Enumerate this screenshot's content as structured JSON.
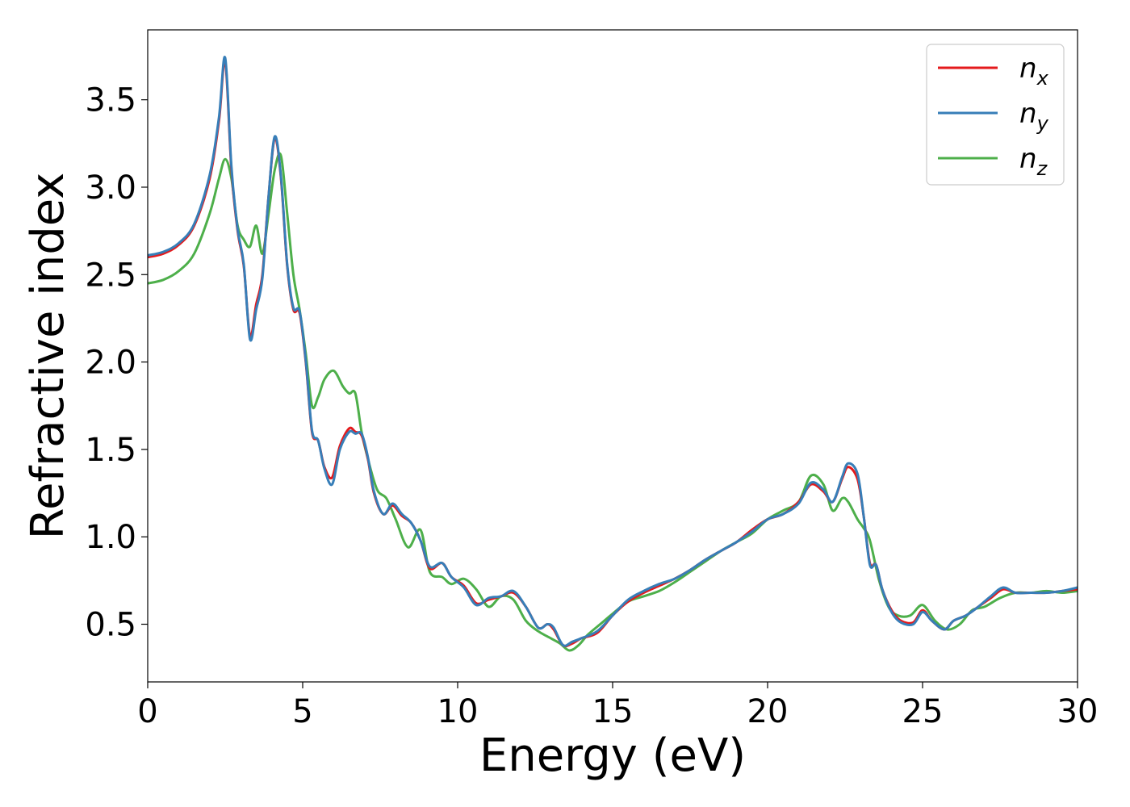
{
  "chart_data": {
    "type": "line",
    "title": "",
    "xlabel": "Energy (eV)",
    "ylabel": "Refractive index",
    "xlim": [
      0,
      30
    ],
    "ylim": [
      0.17,
      3.9
    ],
    "xticks": [
      0,
      5,
      10,
      15,
      20,
      25,
      30
    ],
    "xtick_labels": [
      "0",
      "5",
      "10",
      "15",
      "20",
      "25",
      "30"
    ],
    "yticks": [
      0.5,
      1.0,
      1.5,
      2.0,
      2.5,
      3.0,
      3.5
    ],
    "ytick_labels": [
      "0.5",
      "1.0",
      "1.5",
      "2.0",
      "2.5",
      "3.0",
      "3.5"
    ],
    "grid": false,
    "legend_position": "top-right",
    "series": [
      {
        "name": "n_x",
        "label_base": "n",
        "label_sub": "x",
        "color": "#e41a1c",
        "x": [
          0,
          0.5,
          1.0,
          1.5,
          2.0,
          2.3,
          2.5,
          2.7,
          2.9,
          3.1,
          3.3,
          3.5,
          3.7,
          3.9,
          4.1,
          4.3,
          4.5,
          4.7,
          4.9,
          5.1,
          5.3,
          5.5,
          5.7,
          5.95,
          6.2,
          6.5,
          6.7,
          6.9,
          7.1,
          7.3,
          7.6,
          7.9,
          8.2,
          8.5,
          8.8,
          9.1,
          9.5,
          9.8,
          10.2,
          10.6,
          11.0,
          11.4,
          11.8,
          12.2,
          12.6,
          12.9,
          13.1,
          13.4,
          13.7,
          14.0,
          14.5,
          15.0,
          15.5,
          16.0,
          16.5,
          17.0,
          17.5,
          18.0,
          18.5,
          19.0,
          19.5,
          20.0,
          20.5,
          21.0,
          21.4,
          21.8,
          22.1,
          22.4,
          22.6,
          22.9,
          23.1,
          23.3,
          23.5,
          23.7,
          24.0,
          24.3,
          24.7,
          25.0,
          25.3,
          25.7,
          26.0,
          26.4,
          26.8,
          27.2,
          27.6,
          28.0,
          28.5,
          29.0,
          29.5,
          30.0
        ],
        "values": [
          2.6,
          2.62,
          2.67,
          2.78,
          3.05,
          3.38,
          3.72,
          3.1,
          2.75,
          2.55,
          2.15,
          2.33,
          2.5,
          2.95,
          3.28,
          3.05,
          2.55,
          2.3,
          2.28,
          2.0,
          1.6,
          1.55,
          1.4,
          1.34,
          1.52,
          1.62,
          1.6,
          1.58,
          1.45,
          1.25,
          1.13,
          1.18,
          1.12,
          1.08,
          0.98,
          0.82,
          0.85,
          0.77,
          0.72,
          0.62,
          0.64,
          0.66,
          0.68,
          0.6,
          0.48,
          0.5,
          0.47,
          0.38,
          0.39,
          0.42,
          0.45,
          0.55,
          0.63,
          0.68,
          0.72,
          0.76,
          0.81,
          0.87,
          0.92,
          0.97,
          1.04,
          1.1,
          1.13,
          1.2,
          1.3,
          1.26,
          1.2,
          1.33,
          1.4,
          1.33,
          1.12,
          0.85,
          0.84,
          0.7,
          0.58,
          0.52,
          0.51,
          0.58,
          0.52,
          0.47,
          0.52,
          0.55,
          0.6,
          0.65,
          0.7,
          0.68,
          0.68,
          0.68,
          0.69,
          0.7
        ]
      },
      {
        "name": "n_y",
        "label_base": "n",
        "label_sub": "y",
        "color": "#377eb8",
        "x": [
          0,
          0.5,
          1.0,
          1.5,
          2.0,
          2.3,
          2.5,
          2.7,
          2.9,
          3.1,
          3.3,
          3.5,
          3.7,
          3.9,
          4.1,
          4.3,
          4.5,
          4.7,
          4.9,
          5.1,
          5.3,
          5.5,
          5.7,
          5.95,
          6.2,
          6.5,
          6.7,
          6.9,
          7.1,
          7.3,
          7.6,
          7.9,
          8.2,
          8.5,
          8.8,
          9.1,
          9.5,
          9.8,
          10.2,
          10.6,
          11.0,
          11.4,
          11.8,
          12.2,
          12.6,
          12.9,
          13.1,
          13.4,
          13.7,
          14.0,
          14.5,
          15.0,
          15.5,
          16.0,
          16.5,
          17.0,
          17.5,
          18.0,
          18.5,
          19.0,
          19.5,
          20.0,
          20.5,
          21.0,
          21.4,
          21.8,
          22.1,
          22.4,
          22.6,
          22.9,
          23.1,
          23.3,
          23.5,
          23.7,
          24.0,
          24.3,
          24.7,
          25.0,
          25.3,
          25.7,
          26.0,
          26.4,
          26.8,
          27.2,
          27.6,
          28.0,
          28.5,
          29.0,
          29.5,
          30.0
        ],
        "values": [
          2.61,
          2.63,
          2.68,
          2.79,
          3.07,
          3.4,
          3.74,
          3.12,
          2.76,
          2.56,
          2.13,
          2.3,
          2.48,
          2.95,
          3.29,
          3.06,
          2.56,
          2.31,
          2.29,
          2.01,
          1.61,
          1.55,
          1.39,
          1.3,
          1.5,
          1.6,
          1.59,
          1.59,
          1.46,
          1.26,
          1.13,
          1.19,
          1.13,
          1.08,
          0.98,
          0.83,
          0.85,
          0.77,
          0.71,
          0.61,
          0.65,
          0.66,
          0.69,
          0.6,
          0.48,
          0.5,
          0.48,
          0.38,
          0.4,
          0.42,
          0.46,
          0.55,
          0.64,
          0.69,
          0.73,
          0.76,
          0.81,
          0.87,
          0.92,
          0.97,
          1.03,
          1.1,
          1.13,
          1.19,
          1.31,
          1.27,
          1.2,
          1.34,
          1.42,
          1.36,
          1.12,
          0.84,
          0.84,
          0.7,
          0.57,
          0.51,
          0.5,
          0.57,
          0.52,
          0.47,
          0.52,
          0.55,
          0.6,
          0.66,
          0.71,
          0.68,
          0.68,
          0.68,
          0.69,
          0.71
        ]
      },
      {
        "name": "n_z",
        "label_base": "n",
        "label_sub": "z",
        "color": "#4daf4a",
        "x": [
          0,
          0.5,
          1.0,
          1.5,
          2.0,
          2.3,
          2.5,
          2.7,
          2.9,
          3.1,
          3.3,
          3.5,
          3.7,
          3.9,
          4.1,
          4.3,
          4.5,
          4.7,
          4.9,
          5.1,
          5.3,
          5.5,
          5.7,
          6.0,
          6.3,
          6.5,
          6.7,
          6.9,
          7.1,
          7.4,
          7.7,
          8.0,
          8.4,
          8.8,
          9.1,
          9.5,
          9.8,
          10.2,
          10.6,
          11.0,
          11.4,
          11.8,
          12.2,
          12.6,
          13.0,
          13.3,
          13.6,
          13.9,
          14.2,
          14.6,
          15.0,
          15.5,
          16.0,
          16.5,
          17.0,
          17.5,
          18.0,
          18.5,
          19.0,
          19.5,
          20.0,
          20.5,
          21.0,
          21.4,
          21.8,
          22.1,
          22.4,
          22.6,
          22.9,
          23.1,
          23.3,
          23.6,
          23.9,
          24.2,
          24.6,
          25.0,
          25.4,
          25.8,
          26.2,
          26.6,
          27.0,
          27.5,
          28.0,
          28.5,
          29.0,
          29.5,
          30.0
        ],
        "values": [
          2.45,
          2.47,
          2.52,
          2.62,
          2.85,
          3.05,
          3.16,
          3.05,
          2.78,
          2.7,
          2.66,
          2.78,
          2.62,
          2.85,
          3.1,
          3.18,
          2.85,
          2.5,
          2.3,
          2.05,
          1.75,
          1.8,
          1.9,
          1.95,
          1.86,
          1.82,
          1.82,
          1.6,
          1.45,
          1.27,
          1.22,
          1.1,
          0.94,
          1.04,
          0.8,
          0.77,
          0.73,
          0.76,
          0.7,
          0.6,
          0.66,
          0.64,
          0.52,
          0.46,
          0.42,
          0.39,
          0.35,
          0.38,
          0.44,
          0.5,
          0.56,
          0.63,
          0.66,
          0.69,
          0.74,
          0.8,
          0.86,
          0.92,
          0.97,
          1.02,
          1.1,
          1.15,
          1.2,
          1.35,
          1.3,
          1.15,
          1.22,
          1.2,
          1.1,
          1.05,
          0.98,
          0.75,
          0.6,
          0.55,
          0.55,
          0.61,
          0.52,
          0.47,
          0.5,
          0.58,
          0.6,
          0.65,
          0.68,
          0.68,
          0.69,
          0.68,
          0.69
        ]
      }
    ]
  }
}
